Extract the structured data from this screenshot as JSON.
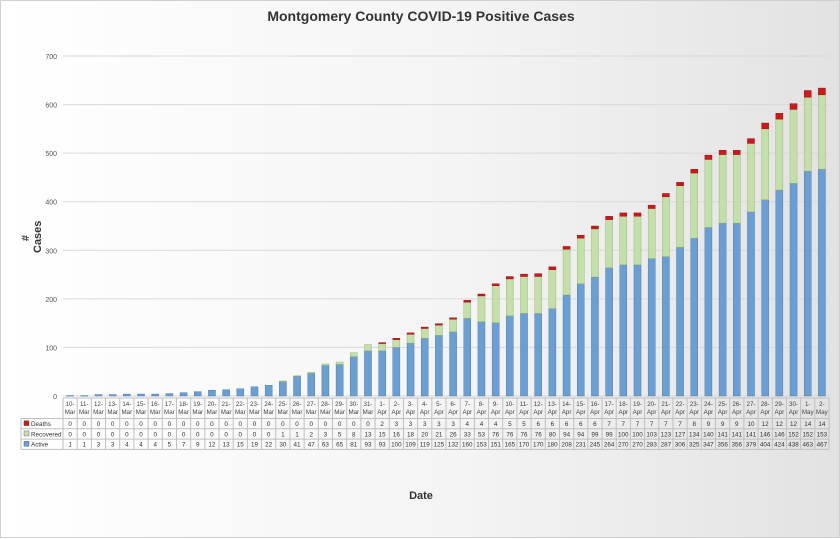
{
  "chart_data": {
    "type": "bar",
    "stacked": true,
    "title": "Montgomery County COVID-19 Positive Cases",
    "xlabel": "Date",
    "ylabel": "# Cases",
    "ylim": [
      0,
      700
    ],
    "yticks": [
      0,
      100,
      200,
      300,
      400,
      500,
      600,
      700
    ],
    "grid": true,
    "legend": "data-table-left",
    "categories": [
      "10-Mar",
      "11-Mar",
      "12-Mar",
      "13-Mar",
      "14-Mar",
      "15-Mar",
      "16-Mar",
      "17-Mar",
      "18-Mar",
      "19-Mar",
      "20-Mar",
      "21-Mar",
      "22-Mar",
      "23-Mar",
      "24-Mar",
      "25-Mar",
      "26-Mar",
      "27-Mar",
      "28-Mar",
      "29-Mar",
      "30-Mar",
      "31-Mar",
      "1-Apr",
      "2-Apr",
      "3-Apr",
      "4-Apr",
      "5-Apr",
      "6-Apr",
      "7-Apr",
      "8-Apr",
      "9-Apr",
      "10-Apr",
      "11-Apr",
      "12-Apr",
      "13-Apr",
      "14-Apr",
      "15-Apr",
      "16-Apr",
      "17-Apr",
      "18-Apr",
      "19-Apr",
      "20-Apr",
      "21-Apr",
      "22-Apr",
      "23-Apr",
      "24-Apr",
      "25-Apr",
      "26-Apr",
      "27-Apr",
      "28-Apr",
      "29-Apr",
      "30-Apr",
      "1-May",
      "2-May"
    ],
    "category_top": [
      "10-",
      "11-",
      "12-",
      "13-",
      "14-",
      "15-",
      "16-",
      "17-",
      "18-",
      "19-",
      "20-",
      "21-",
      "22-",
      "23-",
      "24-",
      "25-",
      "26-",
      "27-",
      "28-",
      "29-",
      "30-",
      "31-",
      "1-",
      "2-",
      "3-",
      "4-",
      "5-",
      "6-",
      "7-",
      "8-",
      "9-",
      "10-",
      "11-",
      "12-",
      "13-",
      "14-",
      "15-",
      "16-",
      "17-",
      "18-",
      "19-",
      "20-",
      "21-",
      "22-",
      "23-",
      "24-",
      "25-",
      "26-",
      "27-",
      "28-",
      "29-",
      "30-",
      "1-",
      "2-"
    ],
    "category_bottom": [
      "Mar",
      "Mar",
      "Mar",
      "Mar",
      "Mar",
      "Mar",
      "Mar",
      "Mar",
      "Mar",
      "Mar",
      "Mar",
      "Mar",
      "Mar",
      "Mar",
      "Mar",
      "Mar",
      "Mar",
      "Mar",
      "Mar",
      "Mar",
      "Mar",
      "Mar",
      "Apr",
      "Apr",
      "Apr",
      "Apr",
      "Apr",
      "Apr",
      "Apr",
      "Apr",
      "Apr",
      "Apr",
      "Apr",
      "Apr",
      "Apr",
      "Apr",
      "Apr",
      "Apr",
      "Apr",
      "Apr",
      "Apr",
      "Apr",
      "Apr",
      "Apr",
      "Apr",
      "Apr",
      "Apr",
      "Apr",
      "Apr",
      "Apr",
      "Apr",
      "Apr",
      "May",
      "May"
    ],
    "series": [
      {
        "name": "Active",
        "color": "#6a9fd4",
        "values": [
          1,
          1,
          3,
          3,
          4,
          4,
          4,
          5,
          7,
          9,
          12,
          13,
          15,
          19,
          22,
          30,
          41,
          47,
          63,
          65,
          81,
          93,
          93,
          100,
          109,
          119,
          125,
          132,
          160,
          153,
          151,
          165,
          170,
          170,
          180,
          208,
          231,
          245,
          264,
          270,
          270,
          283,
          287,
          306,
          325,
          347,
          356,
          356,
          379,
          404,
          424,
          438,
          463,
          467
        ]
      },
      {
        "name": "Recovered",
        "color": "#c4dfa9",
        "values": [
          0,
          0,
          0,
          0,
          0,
          0,
          0,
          0,
          0,
          0,
          0,
          0,
          0,
          0,
          0,
          1,
          1,
          2,
          3,
          5,
          8,
          13,
          15,
          16,
          18,
          20,
          21,
          26,
          33,
          53,
          76,
          76,
          76,
          76,
          80,
          94,
          94,
          99,
          99,
          100,
          100,
          103,
          123,
          127,
          134,
          140,
          141,
          141,
          141,
          146,
          146,
          152,
          152,
          153
        ]
      },
      {
        "name": "Deaths",
        "color": "#d01818",
        "values": [
          0,
          0,
          0,
          0,
          0,
          0,
          0,
          0,
          0,
          0,
          0,
          0,
          0,
          0,
          0,
          0,
          0,
          0,
          0,
          0,
          0,
          0,
          2,
          3,
          3,
          3,
          3,
          3,
          4,
          4,
          4,
          5,
          5,
          6,
          6,
          6,
          6,
          6,
          7,
          7,
          7,
          7,
          7,
          7,
          8,
          9,
          9,
          9,
          10,
          12,
          12,
          12,
          14,
          14
        ]
      }
    ],
    "table_row_order": [
      "Deaths",
      "Recovered",
      "Active"
    ]
  }
}
